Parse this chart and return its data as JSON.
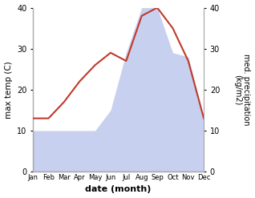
{
  "months": [
    "Jan",
    "Feb",
    "Mar",
    "Apr",
    "May",
    "Jun",
    "Jul",
    "Aug",
    "Sep",
    "Oct",
    "Nov",
    "Dec"
  ],
  "month_indices": [
    1,
    2,
    3,
    4,
    5,
    6,
    7,
    8,
    9,
    10,
    11,
    12
  ],
  "temperature": [
    13,
    13,
    17,
    22,
    26,
    29,
    27,
    38,
    40,
    35,
    27,
    13
  ],
  "precipitation": [
    10,
    10,
    10,
    10,
    10,
    15,
    29,
    40,
    40,
    29,
    28,
    13
  ],
  "temp_color": "#c0392b",
  "precip_color": "#b0bce8",
  "title": "",
  "xlabel": "date (month)",
  "ylabel_left": "max temp (C)",
  "ylabel_right": "med. precipitation\n(kg/m2)",
  "ylim_left": [
    0,
    40
  ],
  "ylim_right": [
    0,
    40
  ],
  "yticks_left": [
    0,
    10,
    20,
    30,
    40
  ],
  "yticks_right": [
    0,
    10,
    20,
    30,
    40
  ],
  "background_color": "#ffffff"
}
